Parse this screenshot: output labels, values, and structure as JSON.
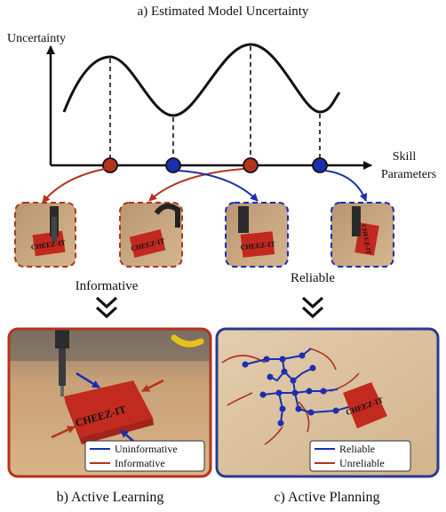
{
  "panel_a": {
    "title": "a) Estimated Model Uncertainty",
    "y_axis_label": "Uncertainty",
    "x_axis_label_line1": "Skill",
    "x_axis_label_line2": "Parameters"
  },
  "labels": {
    "informative": "Informative",
    "reliable": "Reliable"
  },
  "thumbnails": [
    {
      "category": "Informative",
      "object_text": "CHEEZ-IT"
    },
    {
      "category": "Reliable",
      "object_text": "CHEEZ-IT"
    },
    {
      "category": "Informative",
      "object_text": "CHEEZ-IT"
    },
    {
      "category": "Reliable",
      "object_text": "CHEEZ-IT"
    }
  ],
  "panel_b": {
    "caption": "b) Active Learning",
    "object_text": "CHEEZ-IT",
    "legend": [
      {
        "label": "Uninformative",
        "color": "#1b2fae"
      },
      {
        "label": "Informative",
        "color": "#b3331c"
      }
    ]
  },
  "panel_c": {
    "caption": "c) Active Planning",
    "object_text": "CHEEZ-IT",
    "legend": [
      {
        "label": "Reliable",
        "color": "#1b2fae"
      },
      {
        "label": "Unreliable",
        "color": "#b3331c"
      }
    ]
  },
  "colors": {
    "informative": "#b3331c",
    "reliable": "#1b2fae",
    "panel_b_border": "#b3331c",
    "panel_c_border": "#2b3a8f"
  }
}
